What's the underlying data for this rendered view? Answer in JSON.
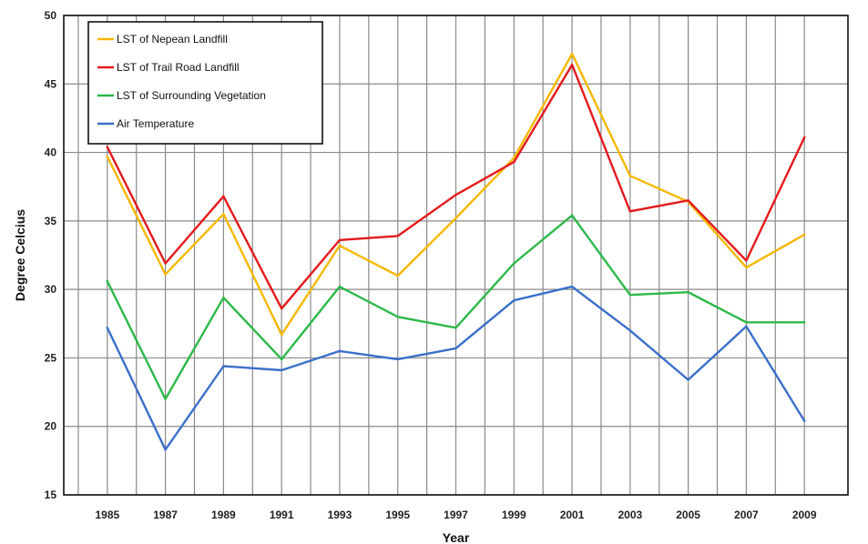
{
  "chart_data": {
    "type": "line",
    "title": "",
    "xlabel": "Year",
    "ylabel": "Degree Celcius",
    "x": [
      1985,
      1987,
      1989,
      1991,
      1993,
      1995,
      1997,
      1999,
      2001,
      2003,
      2005,
      2007,
      2009
    ],
    "x_tick_labels": [
      "1985",
      "1987",
      "1989",
      "1991",
      "1993",
      "1995",
      "1997",
      "1999",
      "2001",
      "2003",
      "2005",
      "2007",
      "2009"
    ],
    "ylim": [
      15,
      50
    ],
    "y_ticks": [
      15,
      20,
      25,
      30,
      35,
      40,
      45,
      50
    ],
    "y_tick_labels": [
      "15",
      "20",
      "25",
      "30",
      "35",
      "40",
      "45",
      "50"
    ],
    "grid": true,
    "legend_position": "top-left",
    "series": [
      {
        "name": "LST of Nepean Landfill",
        "color": "#f5b800",
        "values": [
          39.7,
          31.1,
          35.5,
          26.7,
          33.2,
          31.0,
          35.2,
          39.6,
          47.2,
          38.3,
          36.4,
          31.6,
          34.0
        ]
      },
      {
        "name": "LST of Trail Road Landfill",
        "color": "#e41a1c",
        "values": [
          40.4,
          31.9,
          36.8,
          28.6,
          33.6,
          33.9,
          36.9,
          39.3,
          46.4,
          35.7,
          36.5,
          32.1,
          41.1
        ]
      },
      {
        "name": "LST of Surrounding Vegetation",
        "color": "#2db84a",
        "values": [
          30.6,
          22.0,
          29.4,
          24.9,
          30.2,
          28.0,
          27.2,
          31.9,
          35.4,
          29.6,
          29.8,
          27.6,
          27.6
        ]
      },
      {
        "name": "Air Temperature",
        "color": "#3b6fc9",
        "values": [
          27.2,
          18.3,
          24.4,
          24.1,
          25.5,
          24.9,
          25.7,
          29.2,
          30.2,
          27.0,
          23.4,
          27.3,
          20.4
        ]
      }
    ]
  }
}
